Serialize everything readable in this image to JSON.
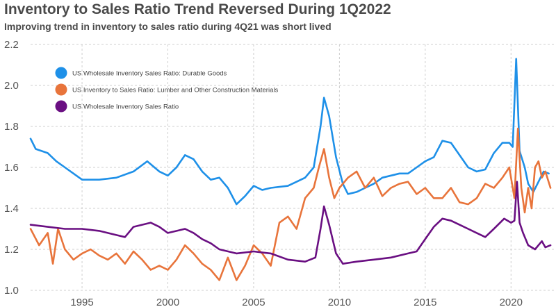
{
  "chart_data": {
    "type": "line",
    "title": "Inventory to Sales Ratio Trend Reversed During 1Q2022",
    "subtitle": "Improving trend in inventory to sales ratio during 4Q21 was short lived",
    "xlabel": "",
    "ylabel": "",
    "xlim": [
      1992,
      2022.5
    ],
    "ylim": [
      1.0,
      2.2
    ],
    "x_ticks": [
      "1995",
      "2000",
      "2005",
      "2010",
      "2015",
      "2020"
    ],
    "y_ticks": [
      "1.0",
      "1.2",
      "1.4",
      "1.6",
      "1.8",
      "2.0",
      "2.2"
    ],
    "grid": true,
    "legend_position": "top-left",
    "series": [
      {
        "name": "US Wholesale Inventory Sales Ratio: Durable Goods",
        "color": "#1e90e8",
        "x": [
          1992.0,
          1992.3,
          1993.0,
          1993.5,
          1994.0,
          1994.5,
          1995.0,
          1996.0,
          1997.0,
          1998.0,
          1998.8,
          1999.5,
          2000.0,
          2000.5,
          2001.0,
          2001.5,
          2002.0,
          2002.5,
          2003.0,
          2003.5,
          2004.0,
          2004.5,
          2005.0,
          2005.5,
          2006.0,
          2007.0,
          2007.5,
          2008.0,
          2008.5,
          2008.9,
          2009.1,
          2009.4,
          2009.8,
          2010.2,
          2010.5,
          2011.0,
          2011.5,
          2012.0,
          2012.5,
          2013.0,
          2013.5,
          2014.0,
          2014.5,
          2015.0,
          2015.5,
          2016.0,
          2016.5,
          2017.0,
          2017.5,
          2018.0,
          2018.5,
          2019.0,
          2019.5,
          2019.9,
          2020.1,
          2020.3,
          2020.5,
          2020.8,
          2021.0,
          2021.3,
          2021.6,
          2021.9,
          2022.2
        ],
        "values": [
          1.74,
          1.69,
          1.67,
          1.63,
          1.6,
          1.57,
          1.54,
          1.54,
          1.55,
          1.58,
          1.63,
          1.58,
          1.56,
          1.6,
          1.66,
          1.64,
          1.58,
          1.54,
          1.55,
          1.5,
          1.42,
          1.46,
          1.51,
          1.49,
          1.5,
          1.51,
          1.53,
          1.55,
          1.6,
          1.8,
          1.94,
          1.85,
          1.65,
          1.52,
          1.47,
          1.48,
          1.5,
          1.52,
          1.55,
          1.56,
          1.57,
          1.57,
          1.6,
          1.63,
          1.65,
          1.73,
          1.72,
          1.66,
          1.6,
          1.58,
          1.59,
          1.67,
          1.72,
          1.72,
          1.7,
          2.13,
          1.68,
          1.6,
          1.52,
          1.48,
          1.53,
          1.58,
          1.57
        ]
      },
      {
        "name": "US Inventory to Sales Ratio: Lumber and Other Construction Materials",
        "color": "#e8743b",
        "x": [
          1992.0,
          1992.5,
          1993.0,
          1993.3,
          1993.6,
          1994.0,
          1994.5,
          1995.0,
          1995.5,
          1996.0,
          1996.5,
          1997.0,
          1997.5,
          1998.0,
          1998.5,
          1999.0,
          1999.5,
          2000.0,
          2000.5,
          2001.0,
          2001.5,
          2002.0,
          2002.5,
          2003.0,
          2003.5,
          2004.0,
          2004.5,
          2005.0,
          2005.5,
          2006.0,
          2006.5,
          2007.0,
          2007.5,
          2008.0,
          2008.5,
          2008.8,
          2009.1,
          2009.4,
          2009.7,
          2010.0,
          2010.5,
          2011.0,
          2011.5,
          2012.0,
          2012.5,
          2013.0,
          2013.5,
          2014.0,
          2014.5,
          2015.0,
          2015.5,
          2016.0,
          2016.5,
          2017.0,
          2017.5,
          2018.0,
          2018.5,
          2019.0,
          2019.5,
          2019.9,
          2020.2,
          2020.4,
          2020.6,
          2020.8,
          2021.0,
          2021.2,
          2021.4,
          2021.6,
          2021.8,
          2022.0,
          2022.3
        ],
        "values": [
          1.3,
          1.22,
          1.28,
          1.13,
          1.3,
          1.2,
          1.15,
          1.18,
          1.2,
          1.17,
          1.15,
          1.18,
          1.13,
          1.19,
          1.15,
          1.1,
          1.12,
          1.1,
          1.15,
          1.22,
          1.18,
          1.13,
          1.1,
          1.05,
          1.16,
          1.05,
          1.12,
          1.22,
          1.18,
          1.12,
          1.33,
          1.36,
          1.3,
          1.45,
          1.5,
          1.6,
          1.69,
          1.55,
          1.45,
          1.5,
          1.55,
          1.58,
          1.5,
          1.55,
          1.46,
          1.5,
          1.52,
          1.53,
          1.47,
          1.5,
          1.45,
          1.45,
          1.5,
          1.43,
          1.42,
          1.45,
          1.52,
          1.5,
          1.55,
          1.6,
          1.45,
          1.79,
          1.5,
          1.38,
          1.5,
          1.4,
          1.6,
          1.63,
          1.55,
          1.58,
          1.5
        ]
      },
      {
        "name": "US Wholesale Inventory Sales Ratio",
        "color": "#6a0f82",
        "x": [
          1992.0,
          1993.0,
          1994.0,
          1995.0,
          1996.0,
          1997.0,
          1997.5,
          1998.0,
          1999.0,
          1999.5,
          2000.0,
          2001.0,
          2001.5,
          2002.0,
          2002.5,
          2003.0,
          2004.0,
          2005.0,
          2006.0,
          2007.0,
          2008.0,
          2008.6,
          2008.9,
          2009.1,
          2009.4,
          2009.8,
          2010.2,
          2011.0,
          2012.0,
          2013.0,
          2014.0,
          2014.5,
          2015.0,
          2015.5,
          2016.0,
          2016.5,
          2017.0,
          2017.5,
          2018.0,
          2018.5,
          2019.0,
          2019.6,
          2020.0,
          2020.2,
          2020.35,
          2020.5,
          2020.7,
          2021.0,
          2021.4,
          2021.8,
          2022.0,
          2022.3
        ],
        "values": [
          1.32,
          1.31,
          1.3,
          1.3,
          1.29,
          1.27,
          1.26,
          1.31,
          1.33,
          1.31,
          1.28,
          1.3,
          1.28,
          1.25,
          1.23,
          1.2,
          1.18,
          1.19,
          1.18,
          1.15,
          1.14,
          1.16,
          1.3,
          1.41,
          1.32,
          1.18,
          1.13,
          1.14,
          1.15,
          1.16,
          1.18,
          1.19,
          1.25,
          1.31,
          1.35,
          1.34,
          1.32,
          1.3,
          1.28,
          1.26,
          1.3,
          1.35,
          1.33,
          1.34,
          1.53,
          1.33,
          1.28,
          1.22,
          1.2,
          1.24,
          1.21,
          1.22
        ]
      }
    ]
  }
}
